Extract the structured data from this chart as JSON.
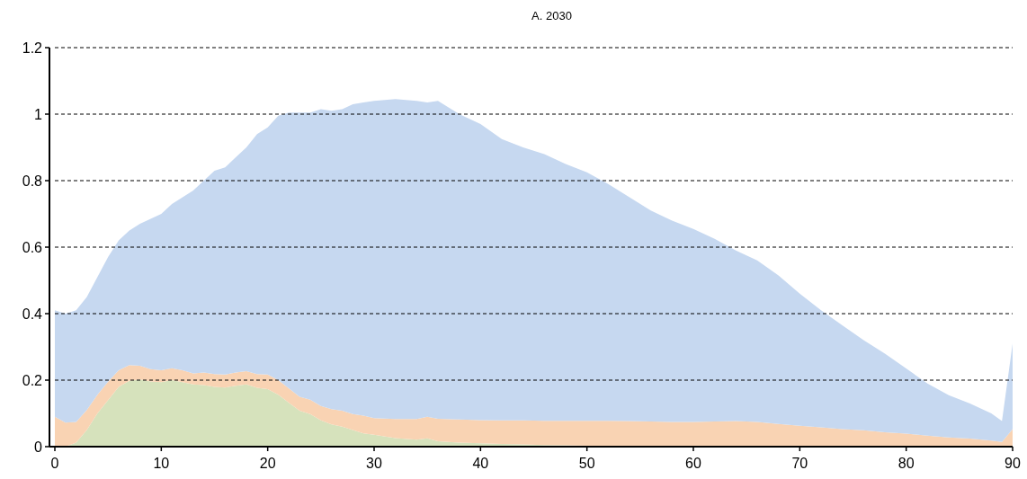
{
  "chart_data": {
    "type": "area",
    "title": "A. 2030",
    "stacked": true,
    "grid": "y",
    "line_style": "dashed",
    "x": [
      0,
      1,
      2,
      3,
      4,
      5,
      6,
      7,
      8,
      9,
      10,
      11,
      12,
      13,
      14,
      15,
      16,
      17,
      18,
      19,
      20,
      21,
      22,
      23,
      24,
      25,
      26,
      27,
      28,
      29,
      30,
      32,
      34,
      35,
      36,
      38,
      40,
      42,
      44,
      46,
      48,
      50,
      52,
      54,
      56,
      58,
      60,
      62,
      64,
      66,
      68,
      70,
      72,
      74,
      76,
      78,
      80,
      82,
      84,
      86,
      88,
      89,
      90
    ],
    "xlim": [
      0,
      90
    ],
    "xticks": [
      0,
      10,
      20,
      30,
      40,
      50,
      60,
      70,
      80,
      90
    ],
    "ylim": [
      0,
      1.2
    ],
    "yticks": [
      0,
      0.2,
      0.4,
      0.6,
      0.8,
      1,
      1.2
    ],
    "series": [
      {
        "color": "#d6e2bc",
        "values": [
          0,
          0,
          0.012,
          0.05,
          0.1,
          0.14,
          0.18,
          0.198,
          0.202,
          0.196,
          0.194,
          0.2,
          0.194,
          0.187,
          0.185,
          0.18,
          0.178,
          0.183,
          0.187,
          0.177,
          0.173,
          0.156,
          0.132,
          0.108,
          0.098,
          0.079,
          0.067,
          0.06,
          0.05,
          0.04,
          0.036,
          0.026,
          0.021,
          0.025,
          0.016,
          0.012,
          0.01,
          0.008,
          0.007,
          0.005,
          0.004,
          0.003,
          0.002,
          0.001,
          0,
          0,
          0,
          0,
          0,
          0,
          0,
          0,
          0,
          0,
          0,
          0,
          0,
          0,
          0,
          0,
          0,
          0,
          0
        ]
      },
      {
        "color": "#f9d3b3",
        "values": [
          0.09,
          0.072,
          0.062,
          0.06,
          0.056,
          0.055,
          0.05,
          0.047,
          0.041,
          0.037,
          0.036,
          0.036,
          0.036,
          0.033,
          0.038,
          0.038,
          0.039,
          0.04,
          0.04,
          0.041,
          0.044,
          0.044,
          0.043,
          0.042,
          0.043,
          0.043,
          0.046,
          0.048,
          0.048,
          0.053,
          0.05,
          0.057,
          0.062,
          0.065,
          0.068,
          0.07,
          0.07,
          0.071,
          0.072,
          0.073,
          0.074,
          0.075,
          0.076,
          0.076,
          0.076,
          0.074,
          0.074,
          0.076,
          0.077,
          0.074,
          0.068,
          0.063,
          0.058,
          0.053,
          0.049,
          0.043,
          0.039,
          0.033,
          0.028,
          0.024,
          0.018,
          0.014,
          0.053
        ]
      },
      {
        "color": "#c6d8f0",
        "values": [
          0.32,
          0.328,
          0.336,
          0.34,
          0.354,
          0.375,
          0.39,
          0.405,
          0.427,
          0.452,
          0.47,
          0.494,
          0.52,
          0.55,
          0.577,
          0.612,
          0.623,
          0.647,
          0.673,
          0.722,
          0.743,
          0.795,
          0.83,
          0.855,
          0.864,
          0.893,
          0.897,
          0.907,
          0.932,
          0.942,
          0.954,
          0.962,
          0.957,
          0.945,
          0.956,
          0.918,
          0.89,
          0.846,
          0.821,
          0.802,
          0.772,
          0.747,
          0.712,
          0.673,
          0.634,
          0.606,
          0.581,
          0.549,
          0.513,
          0.486,
          0.447,
          0.397,
          0.352,
          0.312,
          0.271,
          0.237,
          0.196,
          0.157,
          0.127,
          0.106,
          0.082,
          0.063,
          0.257
        ]
      }
    ]
  }
}
